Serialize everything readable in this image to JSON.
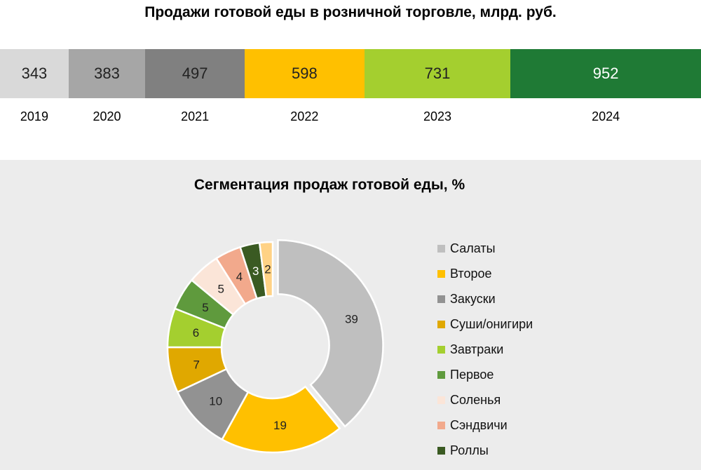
{
  "chart_data": [
    {
      "type": "bar",
      "orientation": "stacked-horizontal",
      "title": "Продажи готовой еды в розничной торговле, млрд. руб.",
      "categories": [
        "2019",
        "2020",
        "2021",
        "2022",
        "2023",
        "2024"
      ],
      "values": [
        343,
        383,
        497,
        598,
        731,
        952
      ],
      "colors": [
        "#d9d9d9",
        "#a6a6a6",
        "#808080",
        "#ffc000",
        "#a4cf2f",
        "#1f7a35"
      ],
      "label_colors": [
        "#222",
        "#222",
        "#222",
        "#222",
        "#222",
        "#ffffff"
      ]
    },
    {
      "type": "pie",
      "style": "donut",
      "title": "Сегментация продаж готовой еды, %",
      "labels": [
        "Салаты",
        "Второе",
        "Закуски",
        "Суши/онигири",
        "Завтраки",
        "Первое",
        "Соленья",
        "Сэндвичи",
        "Роллы",
        ""
      ],
      "values": [
        39,
        19,
        10,
        7,
        6,
        5,
        5,
        4,
        3,
        2
      ],
      "colors": [
        "#bfbfbf",
        "#ffc000",
        "#929292",
        "#e0a800",
        "#a4cf2f",
        "#5f9a3d",
        "#fbe5d8",
        "#f2a98c",
        "#3a5a22",
        "#ffd285"
      ],
      "label_colors": [
        "#222",
        "#222",
        "#222",
        "#222",
        "#222",
        "#222",
        "#222",
        "#222",
        "#ffffff",
        "#222"
      ],
      "legend_position": "right",
      "legend": [
        "Салаты",
        "Второе",
        "Закуски",
        "Суши/онигири",
        "Завтраки",
        "Первое",
        "Соленья",
        "Сэндвичи",
        "Роллы"
      ]
    }
  ]
}
